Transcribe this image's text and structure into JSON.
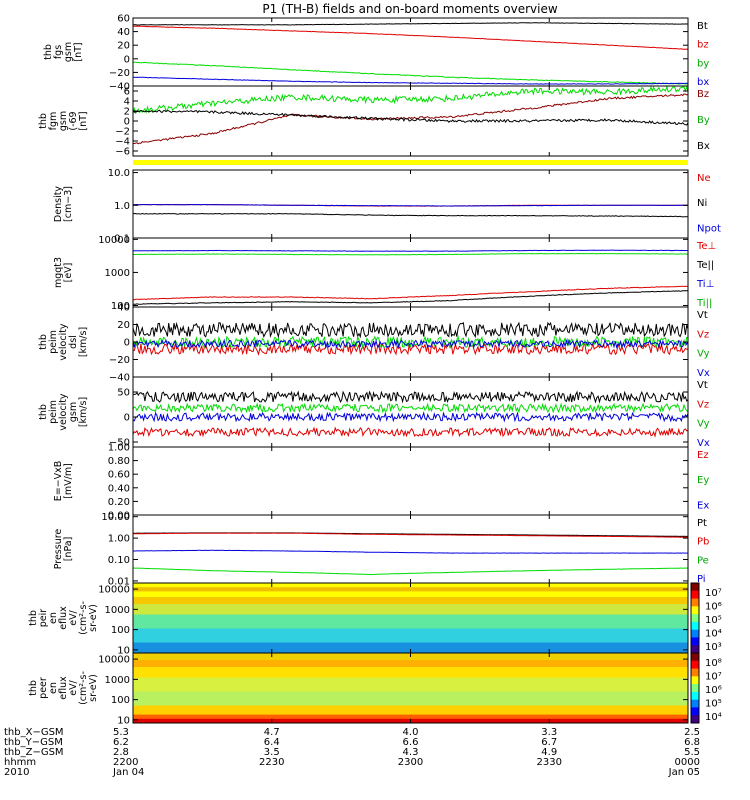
{
  "title": "P1 (TH-B) fields and on-board moments overview",
  "colors": {
    "black": "#000000",
    "red": "#e00000",
    "green": "#00dd00",
    "blue": "#0000dd",
    "yellow": "#ffff00"
  },
  "chart_data": [
    {
      "type": "line",
      "ylabel": [
        "thb",
        "fgs",
        "gsm",
        "[nT]"
      ],
      "ylim": [
        -40,
        60
      ],
      "ticks": [
        "60",
        "40",
        "20",
        "0",
        "−20",
        "−40"
      ],
      "tick_values": [
        60,
        40,
        20,
        0,
        -20,
        -40
      ],
      "series": [
        {
          "name": "Bt",
          "color": "#000000",
          "label_color": "#000000",
          "values": [
            50,
            50,
            50,
            51,
            52,
            53,
            52,
            51
          ],
          "noise": 0.3
        },
        {
          "name": "bz",
          "color": "#e00000",
          "label_color": "#e00000",
          "values": [
            48,
            45,
            41,
            37,
            32,
            26,
            20,
            14
          ],
          "noise": 0.3
        },
        {
          "name": "by",
          "color": "#00dd00",
          "label_color": "#00aa00",
          "values": [
            -5,
            -10,
            -16,
            -22,
            -27,
            -31,
            -34,
            -37
          ],
          "noise": 0.5
        },
        {
          "name": "bx",
          "color": "#0000dd",
          "label_color": "#0000dd",
          "values": [
            -27,
            -30,
            -33,
            -35,
            -36,
            -37,
            -37,
            -36
          ],
          "noise": 0.3
        }
      ]
    },
    {
      "type": "line",
      "ylabel": [
        "thb",
        "fgm",
        "gsm",
        "(-69",
        "[nT]"
      ],
      "ylim": [
        -7,
        7
      ],
      "ticks": [
        "6",
        "4",
        "2",
        "0",
        "−2",
        "−4",
        "−6"
      ],
      "tick_values": [
        6,
        4,
        2,
        0,
        -2,
        -4,
        -6
      ],
      "series": [
        {
          "name": "Bz",
          "color": "#8b0000",
          "label_color": "#8b0000",
          "values": [
            -4.5,
            -2.5,
            1.2,
            0.4,
            0.8,
            2.5,
            4.5,
            5.3
          ],
          "noise": 0.2
        },
        {
          "name": "By",
          "color": "#00dd00",
          "label_color": "#00aa00",
          "values": [
            2,
            3.5,
            4.8,
            4.2,
            4.5,
            6,
            5.8,
            6.5
          ],
          "noise": 0.6
        },
        {
          "name": "Bx",
          "color": "#000000",
          "label_color": "#000000",
          "values": [
            2,
            1.8,
            1.2,
            0.5,
            0,
            0,
            0.2,
            -0.6
          ],
          "noise": 0.25
        }
      ]
    },
    {
      "type": "line",
      "ylabel": [
        "Density",
        "[cm−3]"
      ],
      "ylim": [
        0.1,
        12
      ],
      "log": true,
      "ticks": [
        "10.0",
        "1.0",
        "0.1"
      ],
      "tick_values": [
        10,
        1,
        0.1
      ],
      "series": [
        {
          "name": "Ne",
          "color": "#e00000",
          "label_color": "#e00000",
          "values": [
            1.05,
            1.05,
            1.0,
            0.95,
            0.95,
            1.0,
            1.0,
            1.0
          ],
          "noise": 0.01
        },
        {
          "name": "Ni",
          "color": "#000000",
          "label_color": "#000000",
          "values": [
            0.55,
            0.55,
            0.55,
            0.5,
            0.48,
            0.48,
            0.47,
            0.45
          ],
          "noise": 0.02
        },
        {
          "name": "Npot",
          "color": "#0000dd",
          "label_color": "#0000dd",
          "values": [
            1.05,
            1.05,
            1.0,
            0.98,
            0.95,
            0.98,
            1.0,
            1.0
          ],
          "noise": 0.01
        }
      ]
    },
    {
      "type": "line",
      "ylabel": [
        "mgqt3",
        "[eV]"
      ],
      "ylim": [
        90,
        11000
      ],
      "log": true,
      "ticks": [
        "10000",
        "1000",
        "100"
      ],
      "tick_values": [
        10000,
        1000,
        100
      ],
      "series": [
        {
          "name": "Te⊥",
          "color": "#e00000",
          "label_color": "#e00000",
          "values": [
            150,
            180,
            180,
            160,
            200,
            260,
            330,
            380
          ],
          "noise": 0.02
        },
        {
          "name": "Te||",
          "color": "#000000",
          "label_color": "#000000",
          "values": [
            110,
            120,
            130,
            120,
            140,
            190,
            240,
            280
          ],
          "noise": 0.02
        },
        {
          "name": "Ti⊥",
          "color": "#0000dd",
          "label_color": "#0000dd",
          "values": [
            4500,
            4600,
            4500,
            4400,
            4400,
            4600,
            4700,
            4600
          ],
          "noise": 0.01
        },
        {
          "name": "Ti||",
          "color": "#00dd00",
          "label_color": "#00aa00",
          "values": [
            3500,
            3600,
            3500,
            3400,
            3500,
            3700,
            3700,
            3600
          ],
          "noise": 0.01
        }
      ]
    },
    {
      "type": "line",
      "ylabel": [
        "thb",
        "peim",
        "velocity",
        "dsl",
        "[km/s]"
      ],
      "ylim": [
        -40,
        40
      ],
      "ticks": [
        "40",
        "20",
        "0",
        "−20",
        "−40"
      ],
      "tick_values": [
        40,
        20,
        0,
        -20,
        -40
      ],
      "series": [
        {
          "name": "Vt",
          "color": "#000000",
          "label_color": "#000000",
          "values": [
            14,
            14,
            14,
            14,
            14,
            14,
            14,
            14
          ],
          "noise": 8
        },
        {
          "name": "Vz",
          "color": "#e00000",
          "label_color": "#e00000",
          "values": [
            -8,
            -8,
            -8,
            -8,
            -8,
            -8,
            -8,
            -8
          ],
          "noise": 6
        },
        {
          "name": "Vy",
          "color": "#00dd00",
          "label_color": "#00aa00",
          "values": [
            0,
            0,
            0,
            0,
            0,
            0,
            0,
            0
          ],
          "noise": 6
        },
        {
          "name": "Vx",
          "color": "#0000dd",
          "label_color": "#0000dd",
          "values": [
            -2,
            -2,
            -2,
            -2,
            -2,
            -2,
            -2,
            -2
          ],
          "noise": 4
        }
      ]
    },
    {
      "type": "line",
      "ylabel": [
        "thb",
        "peim",
        "velocity",
        "gsm",
        "[km/s]"
      ],
      "ylim": [
        -60,
        80
      ],
      "ticks": [
        "50",
        "0",
        "−50"
      ],
      "tick_values": [
        50,
        0,
        -50
      ],
      "series": [
        {
          "name": "Vt",
          "color": "#000000",
          "label_color": "#000000",
          "values": [
            40,
            40,
            40,
            40,
            40,
            40,
            40,
            40
          ],
          "noise": 10
        },
        {
          "name": "Vz",
          "color": "#e00000",
          "label_color": "#e00000",
          "values": [
            -30,
            -30,
            -30,
            -30,
            -30,
            -30,
            -30,
            -30
          ],
          "noise": 8
        },
        {
          "name": "Vy",
          "color": "#00dd00",
          "label_color": "#00aa00",
          "values": [
            18,
            18,
            18,
            18,
            18,
            18,
            18,
            18
          ],
          "noise": 8
        },
        {
          "name": "Vx",
          "color": "#0000dd",
          "label_color": "#0000dd",
          "values": [
            0,
            0,
            0,
            0,
            0,
            0,
            0,
            0
          ],
          "noise": 8
        }
      ]
    },
    {
      "type": "line",
      "ylabel": [
        "E=−VxB",
        "[mV/m]"
      ],
      "ylim": [
        0,
        1
      ],
      "ticks": [
        "1.00",
        "0.80",
        "0.60",
        "0.40",
        "0.20",
        "0.00"
      ],
      "tick_values": [
        1,
        0.8,
        0.6,
        0.4,
        0.2,
        0
      ],
      "series": [
        {
          "name": "Ez",
          "label_color": "#e00000"
        },
        {
          "name": "Ey",
          "label_color": "#00aa00"
        },
        {
          "name": "Ex",
          "label_color": "#0000dd"
        }
      ]
    },
    {
      "type": "line",
      "ylabel": [
        "Pressure",
        "[nPa]"
      ],
      "ylim": [
        0.008,
        12
      ],
      "log": true,
      "ticks": [
        "10.00",
        "1.00",
        "0.10",
        "0.01"
      ],
      "tick_values": [
        10,
        1,
        0.1,
        0.01
      ],
      "series": [
        {
          "name": "Pt",
          "color": "#000000",
          "label_color": "#000000",
          "values": [
            1.7,
            1.75,
            1.75,
            1.6,
            1.5,
            1.4,
            1.3,
            1.2
          ],
          "noise": 0.005
        },
        {
          "name": "Pb",
          "color": "#e00000",
          "label_color": "#e00000",
          "values": [
            1.6,
            1.7,
            1.7,
            1.5,
            1.4,
            1.3,
            1.2,
            1.1
          ],
          "noise": 0.005
        },
        {
          "name": "Pe",
          "color": "#00dd00",
          "label_color": "#00aa00",
          "values": [
            0.04,
            0.03,
            0.025,
            0.02,
            0.025,
            0.03,
            0.035,
            0.04
          ],
          "noise": 0.01
        },
        {
          "name": "Pi",
          "color": "#0000dd",
          "label_color": "#0000dd",
          "values": [
            0.25,
            0.27,
            0.25,
            0.22,
            0.2,
            0.2,
            0.2,
            0.2
          ],
          "noise": 0.01
        }
      ]
    },
    {
      "type": "heatmap",
      "ylabel": [
        "thb",
        "peir",
        "en",
        "eflux",
        "eV/",
        "(cm²-s-",
        "sr-eV)"
      ],
      "ylim": [
        7,
        20000
      ],
      "log": true,
      "ticks": [
        "10000",
        "1000",
        "100",
        "10"
      ],
      "tick_values": [
        10000,
        1000,
        100,
        10
      ],
      "colorbar_ticks": [
        "10⁷",
        "10⁶",
        "10⁵",
        "10⁴",
        "10³"
      ],
      "bands": [
        {
          "from": 0.0,
          "to": 0.06,
          "color": "#ffff00"
        },
        {
          "from": 0.06,
          "to": 0.12,
          "color": "#f0c000"
        },
        {
          "from": 0.12,
          "to": 0.2,
          "color": "#ffff00"
        },
        {
          "from": 0.2,
          "to": 0.3,
          "color": "#f5c800"
        },
        {
          "from": 0.3,
          "to": 0.45,
          "color": "#cfe840"
        },
        {
          "from": 0.45,
          "to": 0.65,
          "color": "#60e8a0"
        },
        {
          "from": 0.65,
          "to": 0.85,
          "color": "#30d0e0"
        },
        {
          "from": 0.85,
          "to": 1.0,
          "color": "#1890e0"
        }
      ]
    },
    {
      "type": "heatmap",
      "ylabel": [
        "thb",
        "peer",
        "en",
        "eflux",
        "eV/",
        "(cm²-s-",
        "sr-eV)"
      ],
      "ylim": [
        7,
        20000
      ],
      "log": true,
      "ticks": [
        "10000",
        "1000",
        "100",
        "10"
      ],
      "tick_values": [
        10000,
        1000,
        100,
        10
      ],
      "colorbar_ticks": [
        "10⁸",
        "10⁷",
        "10⁶",
        "10⁵",
        "10⁴"
      ],
      "bands": [
        {
          "from": 0.0,
          "to": 0.1,
          "color": "#f0d000"
        },
        {
          "from": 0.1,
          "to": 0.2,
          "color": "#ffb000"
        },
        {
          "from": 0.2,
          "to": 0.35,
          "color": "#ffe000"
        },
        {
          "from": 0.35,
          "to": 0.55,
          "color": "#d8f040"
        },
        {
          "from": 0.55,
          "to": 0.75,
          "color": "#b8f060"
        },
        {
          "from": 0.75,
          "to": 0.88,
          "color": "#ffd000"
        },
        {
          "from": 0.88,
          "to": 0.94,
          "color": "#ff6000"
        },
        {
          "from": 0.94,
          "to": 1.0,
          "color": "#e00000"
        }
      ]
    }
  ],
  "xaxis": {
    "row_labels": [
      "thb_X−GSM",
      "thb_Y−GSM",
      "thb_Z−GSM",
      "hhmm",
      "2010"
    ],
    "columns": [
      {
        "values": [
          "5.3",
          "6.2",
          "2.8",
          "2200",
          "Jan 04"
        ]
      },
      {
        "values": [
          "4.7",
          "6.4",
          "3.5",
          "2230",
          ""
        ]
      },
      {
        "values": [
          "4.0",
          "6.6",
          "4.3",
          "2300",
          ""
        ]
      },
      {
        "values": [
          "3.3",
          "6.7",
          "4.9",
          "2330",
          ""
        ]
      },
      {
        "values": [
          "2.5",
          "6.8",
          "5.5",
          "0000",
          "Jan 05"
        ]
      }
    ]
  }
}
